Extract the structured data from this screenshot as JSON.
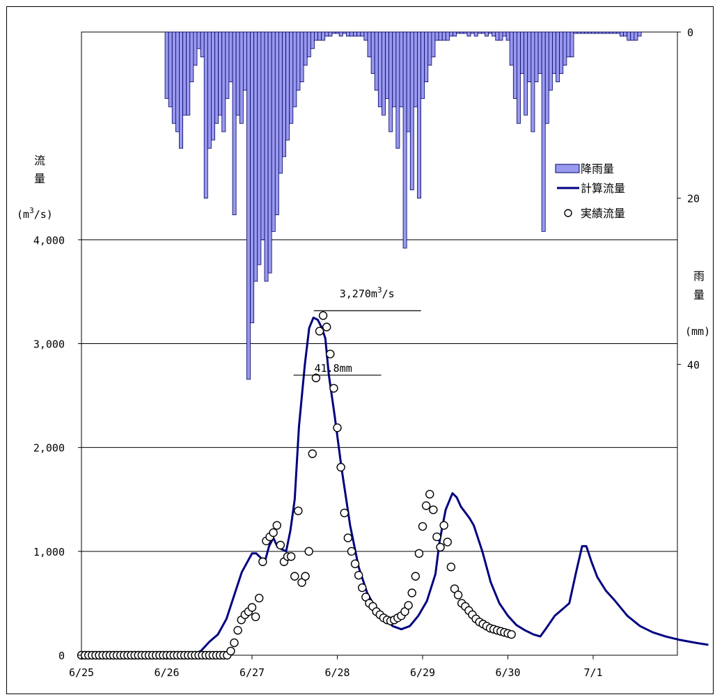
{
  "chart_data": {
    "type": "line",
    "x_tick_labels": [
      "6/25",
      "6/26",
      "6/27",
      "6/28",
      "6/29",
      "6/30",
      "7/1"
    ],
    "x_tick_day_index": [
      0,
      1,
      2,
      3,
      4,
      5,
      6
    ],
    "x_range_days": [
      0,
      6.55
    ],
    "left_axis": {
      "label_chars": [
        "流",
        "量"
      ],
      "unit_prefix": "(m",
      "unit_sup": "3",
      "unit_suffix": "/s)",
      "range": [
        0,
        6000
      ],
      "tick_values": [
        0,
        1000,
        2000,
        3000,
        4000
      ],
      "tick_labels": [
        "0",
        "1,000",
        "2,000",
        "3,000",
        "4,000"
      ]
    },
    "right_axis": {
      "label_chars": [
        "雨",
        "量"
      ],
      "unit": "(mm)",
      "inverted": true,
      "range": [
        0,
        75
      ],
      "tick_values": [
        0,
        20,
        40
      ],
      "tick_labels": [
        "0",
        "20",
        "40"
      ]
    },
    "grid": true,
    "legend_position": "upper-right",
    "legend": [
      {
        "label": "降雨量",
        "kind": "bar"
      },
      {
        "label": "計算流量",
        "kind": "line"
      },
      {
        "label": "実績流量",
        "kind": "marker"
      }
    ],
    "colors": {
      "rain_fill": "#9999ee",
      "rain_stroke": "#000066",
      "calc_line": "#000080",
      "marker": "#000000"
    },
    "annotations": [
      {
        "text": "41.8mm",
        "x_day": 2.47,
        "y_rain": 41.8
      },
      {
        "prefix": "3,270m",
        "sup": "3",
        "suffix": "/s",
        "x_day": 2.7,
        "y_flow": 3270
      }
    ],
    "series": [
      {
        "name": "降雨量",
        "kind": "bar",
        "x_start_day": 0.98,
        "x_step_days": 0.04167,
        "values": [
          8,
          9,
          11,
          12,
          14,
          10,
          10,
          6,
          4,
          2,
          3,
          20,
          14,
          13,
          11,
          10,
          12,
          8,
          6,
          22,
          10,
          11,
          7,
          41.8,
          35,
          30,
          28,
          25,
          30,
          29,
          24,
          22,
          17,
          15,
          13,
          11,
          9,
          7,
          6,
          4,
          3,
          2,
          1,
          1,
          1,
          0.5,
          0.5,
          0,
          0,
          0.5,
          0,
          0.5,
          0.5,
          0.5,
          0.5,
          0.5,
          1,
          3,
          5,
          7,
          9,
          10,
          8,
          12,
          9,
          14,
          9,
          26,
          12,
          19,
          9,
          20,
          8,
          6,
          4,
          3,
          1,
          1,
          1,
          1,
          0.5,
          0.5,
          0,
          0,
          0,
          0.5,
          0,
          0.5,
          0,
          0,
          0.5,
          0,
          0.5,
          1,
          1,
          0.5,
          1,
          4,
          8,
          11,
          5,
          10,
          6,
          12,
          6,
          5,
          24,
          11,
          7,
          5,
          6,
          5,
          4,
          3,
          3,
          0,
          0,
          0,
          0,
          0,
          0,
          0,
          0,
          0,
          0,
          0,
          0,
          0,
          0.5,
          0.5,
          1,
          1,
          1,
          0.5
        ],
        "note": "hourly rainfall, drawn hanging down from the top axis"
      },
      {
        "name": "計算流量",
        "kind": "line",
        "points": [
          [
            0,
            0
          ],
          [
            1.1,
            0
          ],
          [
            1.2,
            0
          ],
          [
            1.3,
            5
          ],
          [
            1.4,
            40
          ],
          [
            1.5,
            130
          ],
          [
            1.6,
            200
          ],
          [
            1.7,
            350
          ],
          [
            1.8,
            600
          ],
          [
            1.88,
            800
          ],
          [
            2.0,
            980
          ],
          [
            2.05,
            980
          ],
          [
            2.15,
            900
          ],
          [
            2.2,
            1050
          ],
          [
            2.25,
            1130
          ],
          [
            2.3,
            1040
          ],
          [
            2.4,
            1000
          ],
          [
            2.45,
            1200
          ],
          [
            2.5,
            1500
          ],
          [
            2.55,
            2200
          ],
          [
            2.62,
            2800
          ],
          [
            2.67,
            3150
          ],
          [
            2.72,
            3250
          ],
          [
            2.77,
            3230
          ],
          [
            2.82,
            3150
          ],
          [
            2.86,
            3050
          ],
          [
            2.9,
            2700
          ],
          [
            2.97,
            2300
          ],
          [
            3.05,
            1800
          ],
          [
            3.15,
            1250
          ],
          [
            3.25,
            850
          ],
          [
            3.35,
            600
          ],
          [
            3.45,
            450
          ],
          [
            3.55,
            350
          ],
          [
            3.65,
            280
          ],
          [
            3.75,
            250
          ],
          [
            3.85,
            280
          ],
          [
            3.95,
            380
          ],
          [
            4.05,
            520
          ],
          [
            4.15,
            780
          ],
          [
            4.2,
            1100
          ],
          [
            4.27,
            1400
          ],
          [
            4.35,
            1560
          ],
          [
            4.4,
            1520
          ],
          [
            4.45,
            1430
          ],
          [
            4.55,
            1320
          ],
          [
            4.6,
            1250
          ],
          [
            4.7,
            1000
          ],
          [
            4.8,
            700
          ],
          [
            4.9,
            500
          ],
          [
            5.0,
            380
          ],
          [
            5.1,
            290
          ],
          [
            5.2,
            240
          ],
          [
            5.3,
            200
          ],
          [
            5.38,
            180
          ],
          [
            5.45,
            260
          ],
          [
            5.55,
            380
          ],
          [
            5.65,
            450
          ],
          [
            5.72,
            500
          ],
          [
            5.8,
            800
          ],
          [
            5.87,
            1050
          ],
          [
            5.92,
            1050
          ],
          [
            5.98,
            900
          ],
          [
            6.05,
            750
          ],
          [
            6.15,
            620
          ],
          [
            6.25,
            530
          ],
          [
            6.4,
            380
          ],
          [
            6.55,
            280
          ],
          [
            6.7,
            220
          ],
          [
            6.85,
            180
          ],
          [
            7.0,
            150
          ],
          [
            7.2,
            120
          ],
          [
            7.35,
            100
          ]
        ],
        "note": "x in days since the 6/25 tick, y in m3/s"
      },
      {
        "name": "実績流量",
        "kind": "scatter",
        "x_start_day": 0.0,
        "x_step_days": 0.04167,
        "values": [
          0,
          0,
          0,
          0,
          0,
          0,
          0,
          0,
          0,
          0,
          0,
          0,
          0,
          0,
          0,
          0,
          0,
          0,
          0,
          0,
          0,
          0,
          0,
          0,
          0,
          0,
          0,
          0,
          0,
          0,
          0,
          0,
          0,
          0,
          0,
          0,
          0,
          0,
          0,
          0,
          0,
          0,
          40,
          120,
          240,
          340,
          390,
          420,
          460,
          370,
          550,
          900,
          1100,
          1140,
          1180,
          1250,
          1060,
          900,
          950,
          950,
          760,
          1390,
          700,
          760,
          1000,
          1940,
          2670,
          3120,
          3270,
          3160,
          2900,
          2570,
          2190,
          1810,
          1370,
          1130,
          1000,
          880,
          770,
          650,
          560,
          500,
          470,
          420,
          390,
          360,
          340,
          330,
          340,
          360,
          380,
          420,
          480,
          600,
          760,
          980,
          1240,
          1440,
          1550,
          1400,
          1140,
          1040,
          1250,
          1090,
          850,
          640,
          580,
          500,
          470,
          430,
          390,
          350,
          320,
          300,
          280,
          260,
          250,
          240,
          230,
          220,
          210,
          200
        ]
      }
    ]
  }
}
